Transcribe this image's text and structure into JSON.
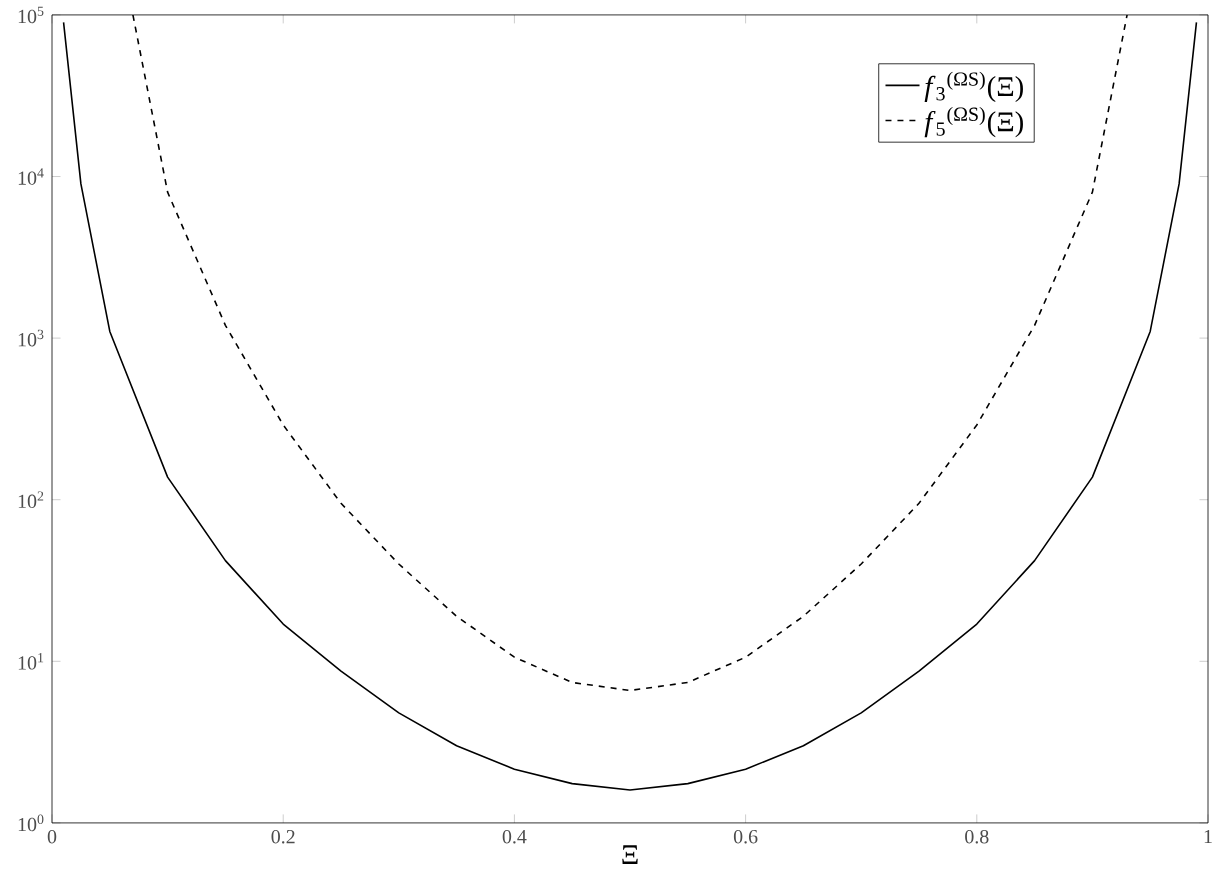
{
  "chart_data": {
    "type": "line",
    "xlabel": "Ξ",
    "log": "y",
    "xlim": [
      0,
      1
    ],
    "ylim": [
      1,
      100000
    ],
    "xticks": [
      0,
      0.2,
      0.4,
      0.6,
      0.8,
      1
    ],
    "yticks": [
      {
        "value": 1,
        "label": "10$^{0}$"
      },
      {
        "value": 10,
        "label": "10$^{1}$"
      },
      {
        "value": 100,
        "label": "10$^{2}$"
      },
      {
        "value": 1000,
        "label": "10$^{3}$"
      },
      {
        "value": 10000,
        "label": "10$^{4}$"
      },
      {
        "value": 100000,
        "label": "10$^{5}$"
      }
    ],
    "legend": "top right",
    "grid": false,
    "marker": "none",
    "series": [
      {
        "name": "*f*$_{3}$$^{(ΩS)}$(Ξ)",
        "color": "#000000",
        "line_style": "solid",
        "x": [
          0.01,
          0.025,
          0.05,
          0.1,
          0.15,
          0.2,
          0.25,
          0.3,
          0.35,
          0.4,
          0.45,
          0.5,
          0.55,
          0.6,
          0.65,
          0.7,
          0.75,
          0.8,
          0.85,
          0.9,
          0.95,
          0.975,
          0.99
        ],
        "values": [
          90000,
          9000,
          1100,
          138,
          42,
          17,
          8.7,
          4.8,
          3.0,
          2.15,
          1.75,
          1.6,
          1.75,
          2.15,
          3.0,
          4.8,
          8.7,
          17,
          42,
          138,
          1100,
          9000,
          90000
        ]
      },
      {
        "name": "*f*$_{5}$$^{(ΩS)}$(Ξ)",
        "color": "#000000",
        "line_style": "dashed",
        "x": [
          0.07,
          0.1,
          0.15,
          0.2,
          0.25,
          0.3,
          0.35,
          0.4,
          0.45,
          0.5,
          0.55,
          0.6,
          0.65,
          0.7,
          0.75,
          0.8,
          0.85,
          0.9,
          0.93
        ],
        "values": [
          100000,
          8000,
          1200,
          290,
          95,
          40,
          19,
          10.6,
          7.4,
          6.6,
          7.4,
          10.6,
          19,
          40,
          95,
          290,
          1200,
          8000,
          100000
        ]
      }
    ]
  }
}
